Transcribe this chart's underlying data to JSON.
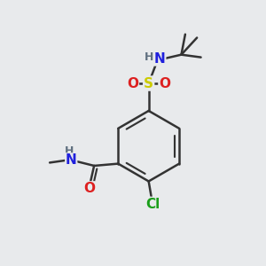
{
  "bg_color": "#e8eaec",
  "atom_colors": {
    "C": "#333333",
    "H": "#607080",
    "N": "#2020dd",
    "O": "#dd2020",
    "S": "#cccc00",
    "Cl": "#1a9e1a"
  },
  "bond_color": "#333333",
  "bond_width": 1.8
}
